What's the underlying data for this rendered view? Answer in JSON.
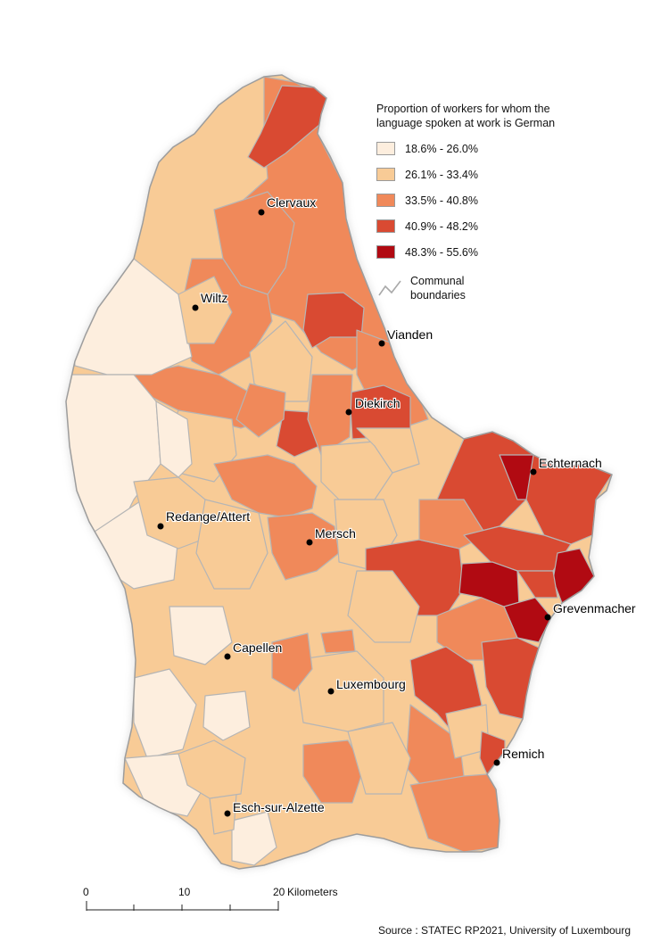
{
  "legend": {
    "title": "Proportion of workers for whom the language spoken at work is German",
    "classes": [
      {
        "label": "18.6% - 26.0%",
        "color": "#fdeede"
      },
      {
        "label": "26.1% - 33.4%",
        "color": "#f8cb96"
      },
      {
        "label": "33.5% - 40.8%",
        "color": "#f0895a"
      },
      {
        "label": "40.9% - 48.2%",
        "color": "#d94a32"
      },
      {
        "label": "48.3% - 55.6%",
        "color": "#b10a12"
      }
    ],
    "boundary_label": "Communal boundaries"
  },
  "cities": [
    {
      "name": "Clervaux"
    },
    {
      "name": "Wiltz"
    },
    {
      "name": "Vianden"
    },
    {
      "name": "Diekirch"
    },
    {
      "name": "Echternach"
    },
    {
      "name": "Redange/Attert"
    },
    {
      "name": "Mersch"
    },
    {
      "name": "Grevenmacher"
    },
    {
      "name": "Capellen"
    },
    {
      "name": "Luxembourg"
    },
    {
      "name": "Remich"
    },
    {
      "name": "Esch-sur-Alzette"
    }
  ],
  "scale_bar": {
    "ticks": [
      "0",
      "10",
      "20"
    ],
    "unit": "Kilometers"
  },
  "source": "Source : STATEC RP2021, University of Luxembourg"
}
